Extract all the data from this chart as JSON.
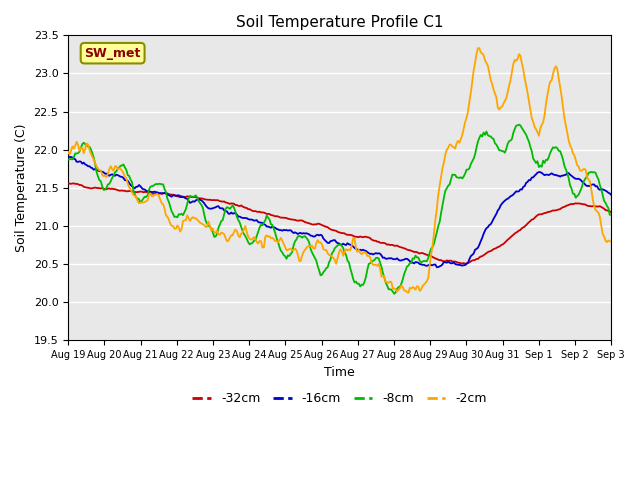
{
  "title": "Soil Temperature Profile C1",
  "xlabel": "Time",
  "ylabel": "Soil Temperature (C)",
  "ylim": [
    19.5,
    23.5
  ],
  "annotation_text": "SW_met",
  "annotation_color": "#8B0000",
  "annotation_bg": "#FFFF99",
  "annotation_border": "#8B8B00",
  "series_colors": {
    "-32cm": "#CC0000",
    "-16cm": "#0000CC",
    "-8cm": "#00BB00",
    "-2cm": "#FFA500"
  },
  "series_lw": 1.3,
  "plot_bg": "#E8E8E8",
  "legend_entries": [
    "-32cm",
    "-16cm",
    "-8cm",
    "-2cm"
  ],
  "legend_colors": [
    "#CC0000",
    "#0000CC",
    "#00BB00",
    "#FFA500"
  ],
  "tick_labels": [
    "Aug 19",
    "Aug 20",
    "Aug 21",
    "Aug 22",
    "Aug 23",
    "Aug 24",
    "Aug 25",
    "Aug 26",
    "Aug 27",
    "Aug 28",
    "Aug 29",
    "Aug 30",
    "Aug 31",
    "Sep 1",
    "Sep 2",
    "Sep 3"
  ],
  "n_days": 15
}
